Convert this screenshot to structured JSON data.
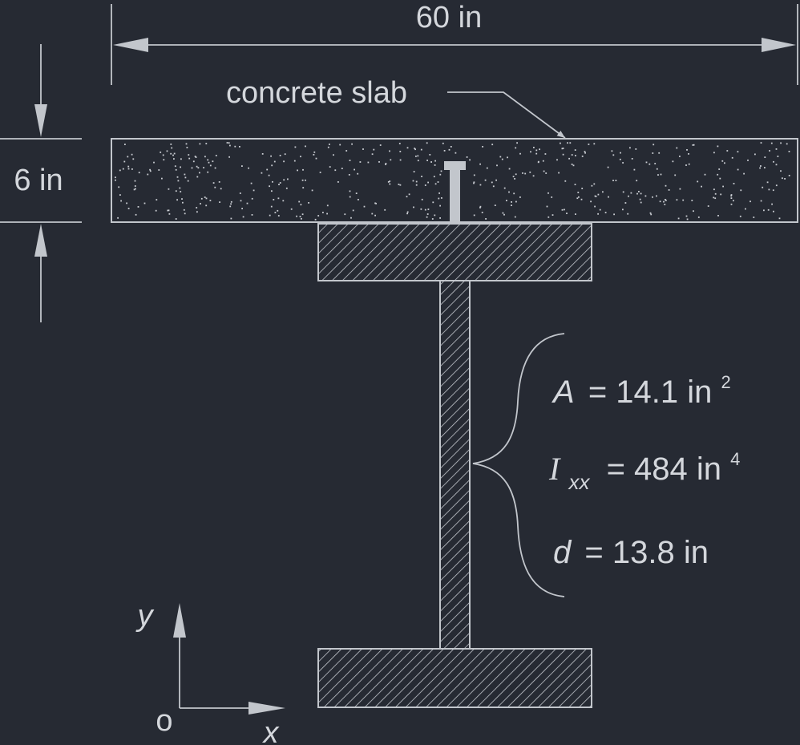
{
  "colors": {
    "background": "#262a33",
    "line": "#c2c6cc",
    "text": "#d4d7dc"
  },
  "dimensions": {
    "width_label": "60 in",
    "thickness_label": "6 in"
  },
  "labels": {
    "slab": "concrete slab"
  },
  "properties": {
    "area": {
      "symbol": "A",
      "value": "= 14.1 in",
      "exponent": "2"
    },
    "inertia": {
      "symbol": "I",
      "subscript": "xx",
      "value": "= 484 in",
      "exponent": "4"
    },
    "depth": {
      "symbol": "d",
      "value": "= 13.8 in"
    }
  },
  "axes": {
    "origin": "o",
    "x": "x",
    "y": "y"
  }
}
